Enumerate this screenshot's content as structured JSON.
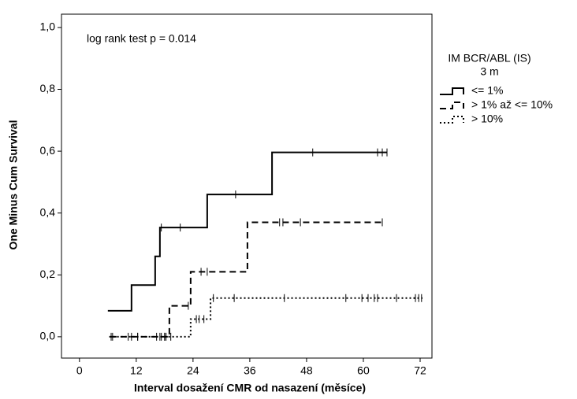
{
  "chart_data": {
    "type": "line",
    "step": "post",
    "annotation": "log rank test  p = 0.014",
    "x_label": "Interval dosažení CMR od nasazení (měsíce)",
    "y_label": "One Minus Cum Survival",
    "legend_title": [
      "IM BCR/ABL (IS)",
      "3 m"
    ],
    "xlim": [
      -3.8,
      74.5
    ],
    "ylim": [
      -0.069,
      1.043
    ],
    "xticks": [
      0,
      12,
      24,
      36,
      48,
      60,
      72
    ],
    "yticks": [
      {
        "value": 0,
        "label": "0,0"
      },
      {
        "value": 0.2,
        "label": "0,2"
      },
      {
        "value": 0.4,
        "label": "0,4"
      },
      {
        "value": 0.6,
        "label": "0,6"
      },
      {
        "value": 0.8,
        "label": "0,8"
      },
      {
        "value": 1.0,
        "label": "1,0"
      }
    ],
    "series": [
      {
        "name": "<= 1%",
        "color": "#000000",
        "dash": "solid",
        "x": [
          6,
          11,
          16,
          17,
          27,
          40.7,
          65
        ],
        "values": [
          0.084,
          0.167,
          0.26,
          0.353,
          0.46,
          0.596,
          0.596
        ],
        "censored": {
          "x": [
            17.3,
            21.3,
            33,
            49.3,
            63,
            64,
            65
          ],
          "y": [
            0.353,
            0.353,
            0.46,
            0.596,
            0.596,
            0.596,
            0.596
          ]
        }
      },
      {
        "name": "> 1% až <= 10%",
        "color": "#000000",
        "dash": "dashed",
        "x": [
          6.5,
          19,
          23.5,
          35.5,
          64
        ],
        "values": [
          0,
          0.1,
          0.21,
          0.37,
          0.37
        ],
        "censored": {
          "x": [
            7,
            10.3,
            11,
            12.3,
            17.3,
            18,
            18.3,
            23,
            25.7,
            27,
            42.3,
            43,
            46.7,
            64
          ],
          "y": [
            0,
            0,
            0,
            0,
            0,
            0,
            0,
            0.1,
            0.21,
            0.21,
            0.37,
            0.37,
            0.37,
            0.37
          ]
        }
      },
      {
        "name": "> 10%",
        "color": "#000000",
        "dash": "dotted",
        "x": [
          6.3,
          23.5,
          27.7,
          72.5
        ],
        "values": [
          0,
          0.057,
          0.125,
          0.125
        ],
        "censored": {
          "x": [
            6.7,
            12.3,
            16.3,
            17,
            18,
            19.3,
            24.7,
            25.3,
            26.3,
            28.3,
            32.7,
            43.3,
            56.3,
            59.7,
            61,
            62.3,
            63,
            67,
            71,
            71.7,
            72.3
          ],
          "y": [
            0,
            0,
            0,
            0,
            0,
            0,
            0.057,
            0.057,
            0.057,
            0.125,
            0.125,
            0.125,
            0.125,
            0.125,
            0.125,
            0.125,
            0.125,
            0.125,
            0.125,
            0.125,
            0.125
          ]
        }
      }
    ]
  }
}
